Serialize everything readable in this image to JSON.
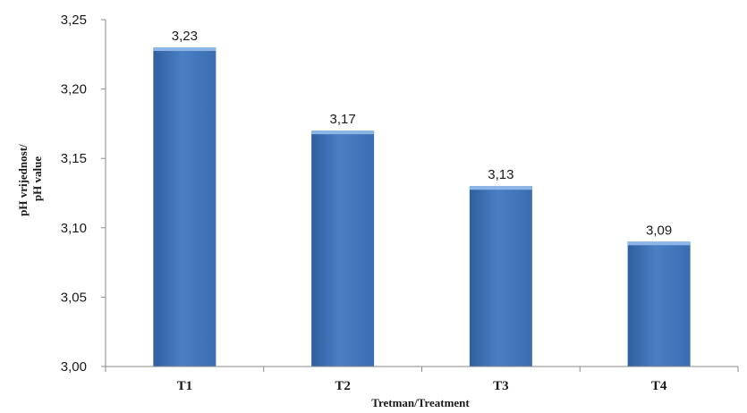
{
  "chart_data": {
    "type": "bar",
    "categories": [
      "T1",
      "T2",
      "T3",
      "T4"
    ],
    "values": [
      3.23,
      3.17,
      3.13,
      3.09
    ],
    "data_labels": [
      "3,23",
      "3,17",
      "3,13",
      "3,09"
    ],
    "xlabel": "Tretman/Treatment",
    "ylabel_lines": [
      "pH vrijednost/",
      "pH value"
    ],
    "ylim": [
      3.0,
      3.25
    ],
    "yticks": [
      3.0,
      3.05,
      3.1,
      3.15,
      3.2,
      3.25
    ],
    "ytick_labels": [
      "3,00",
      "3,05",
      "3,10",
      "3,15",
      "3,20",
      "3,25"
    ],
    "grid": false,
    "legend": "none",
    "colors": {
      "bar_dark": "#2f5f9e",
      "bar_mid": "#4a7fc4",
      "bar_light": "#6b9ad6",
      "bar_top": "#8db6e8",
      "axis": "#8a8a8a"
    }
  }
}
